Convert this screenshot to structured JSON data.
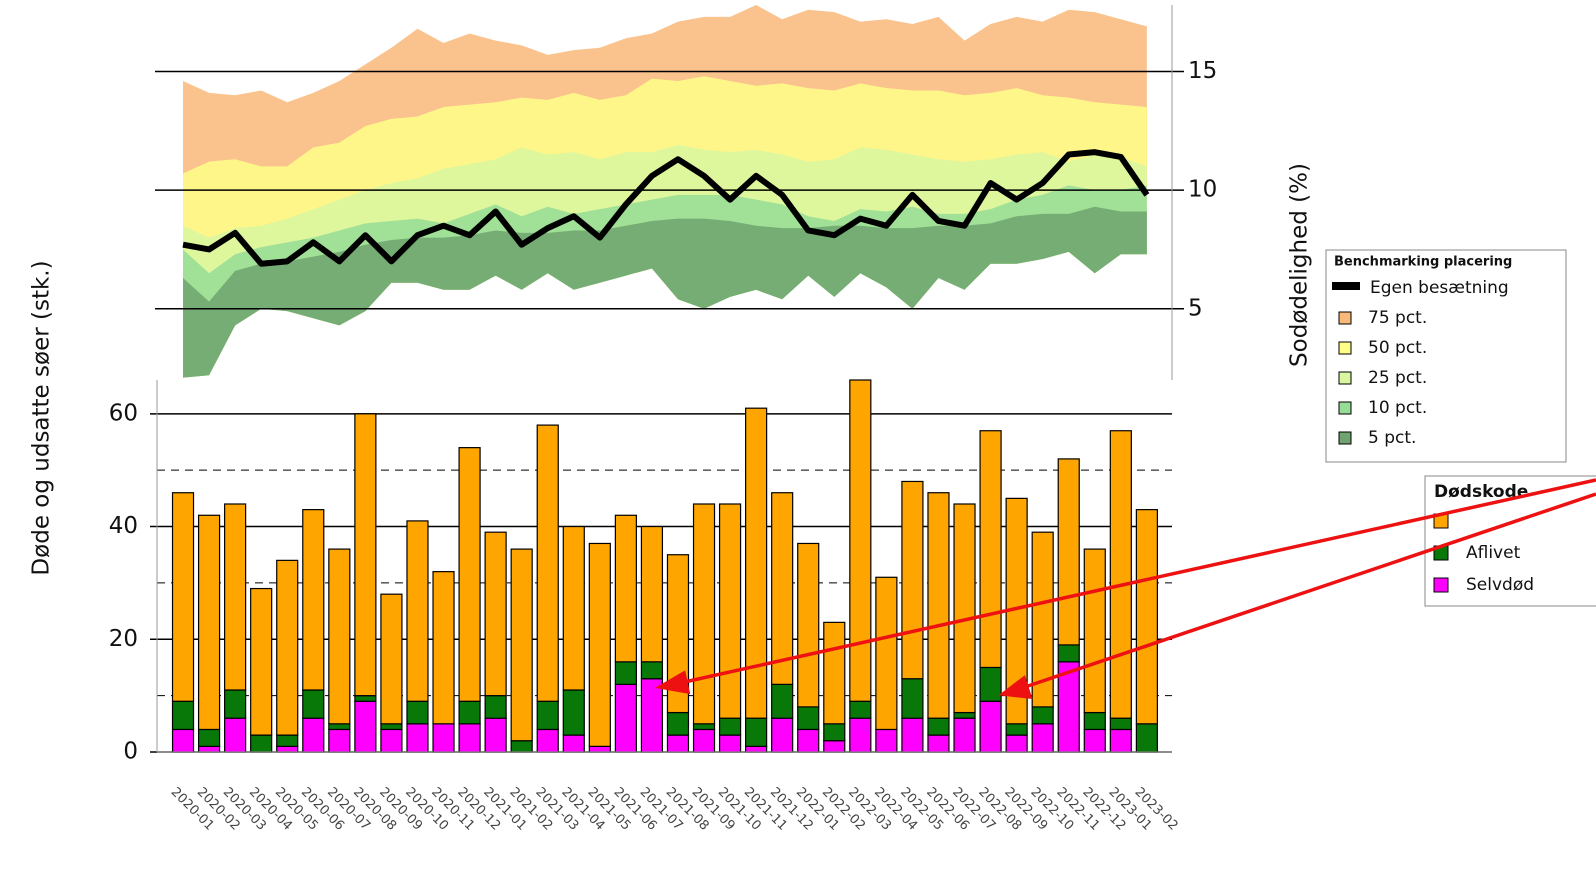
{
  "chart_data": [
    {
      "type": "area",
      "ylabel": "Sodødelighed (%)",
      "ylim": [
        2,
        17.8
      ],
      "yticks": [
        5,
        10,
        15
      ],
      "grid": true,
      "legend_title": "Benchmarking placering",
      "line": {
        "name": "Egen besætning",
        "color": "#000000",
        "values": [
          7.7,
          7.5,
          8.2,
          6.9,
          7.0,
          7.8,
          7.0,
          8.1,
          7.0,
          8.1,
          8.5,
          8.1,
          9.1,
          7.7,
          8.4,
          8.9,
          8.0,
          9.4,
          10.6,
          11.3,
          10.6,
          9.6,
          10.6,
          9.8,
          8.3,
          8.1,
          8.8,
          8.5,
          9.8,
          8.7,
          8.5,
          10.3,
          9.6,
          10.3,
          11.5,
          11.6,
          11.4,
          9.8
        ]
      },
      "series": [
        {
          "name": "75 pct.",
          "color": "#f9b97a",
          "values": [
            14.6,
            14.1,
            14.0,
            14.2,
            13.7,
            14.1,
            14.6,
            15.3,
            16.0,
            16.8,
            16.2,
            16.6,
            16.3,
            16.1,
            15.7,
            15.9,
            16.0,
            16.4,
            16.6,
            17.1,
            17.3,
            17.3,
            17.8,
            17.2,
            17.6,
            17.5,
            17.1,
            17.2,
            17.0,
            17.3,
            16.3,
            17.0,
            17.3,
            17.1,
            17.6,
            17.5,
            17.2,
            16.9
          ]
        },
        {
          "name": "50 pct.",
          "color": "#ffff88",
          "values": [
            10.7,
            11.2,
            11.3,
            11.0,
            11.0,
            11.8,
            12.0,
            12.7,
            13.0,
            13.1,
            13.5,
            13.6,
            13.7,
            13.9,
            13.8,
            14.1,
            13.8,
            14.0,
            14.7,
            14.6,
            14.8,
            14.6,
            14.4,
            14.5,
            14.3,
            14.2,
            14.5,
            14.3,
            14.2,
            14.2,
            14.0,
            14.1,
            14.3,
            14.0,
            13.9,
            13.7,
            13.6,
            13.5
          ]
        },
        {
          "name": "25 pct.",
          "color": "#d9f7a0",
          "values": [
            8.5,
            8.0,
            8.4,
            8.5,
            8.8,
            9.2,
            9.6,
            10.0,
            10.3,
            10.5,
            10.9,
            11.1,
            11.3,
            11.8,
            11.5,
            11.6,
            11.3,
            11.6,
            11.6,
            11.9,
            11.7,
            11.6,
            11.7,
            11.5,
            11.2,
            11.3,
            11.8,
            11.7,
            11.5,
            11.3,
            11.2,
            11.3,
            11.5,
            11.6,
            11.2,
            11.5,
            11.4,
            11.0
          ]
        },
        {
          "name": "10 pct.",
          "color": "#97dc97",
          "values": [
            7.5,
            6.5,
            7.3,
            7.6,
            7.8,
            8.0,
            8.3,
            8.6,
            8.7,
            8.8,
            8.6,
            9.0,
            9.4,
            8.9,
            9.3,
            9.0,
            9.2,
            9.4,
            9.6,
            9.8,
            9.8,
            9.8,
            9.6,
            9.4,
            8.9,
            8.7,
            9.2,
            9.1,
            9.3,
            9.0,
            9.0,
            9.2,
            9.6,
            9.8,
            10.2,
            10.0,
            10.0,
            10.2
          ]
        },
        {
          "name": "5 pct.",
          "color": "#6fa36f",
          "values": [
            6.3,
            5.3,
            6.6,
            6.9,
            7.0,
            7.2,
            7.4,
            7.7,
            7.9,
            8.0,
            8.0,
            8.1,
            8.3,
            8.2,
            8.2,
            8.3,
            8.3,
            8.5,
            8.7,
            8.8,
            8.8,
            8.7,
            8.5,
            8.4,
            8.4,
            8.5,
            8.5,
            8.4,
            8.4,
            8.5,
            8.5,
            8.6,
            8.9,
            9.0,
            9.0,
            9.3,
            9.1,
            9.1
          ]
        }
      ],
      "band_floor": [
        2.1,
        2.2,
        4.3,
        5.0,
        4.9,
        4.6,
        4.3,
        4.9,
        6.1,
        6.1,
        5.8,
        5.8,
        6.4,
        5.8,
        6.5,
        5.8,
        6.1,
        6.4,
        6.7,
        5.4,
        5.0,
        5.5,
        5.8,
        5.4,
        6.4,
        5.5,
        6.5,
        5.9,
        5.0,
        6.3,
        5.8,
        6.9,
        6.9,
        7.1,
        7.4,
        6.5,
        7.3,
        7.3
      ]
    },
    {
      "type": "bar",
      "ylabel": "Døde og udsatte søer (stk.)",
      "ylim": [
        0,
        66
      ],
      "yticks": [
        0,
        20,
        40,
        60
      ],
      "minor_yticks": [
        10,
        30,
        50
      ],
      "grid": true,
      "legend_title": "Dødskode",
      "categories": [
        "2020-01",
        "2020-02",
        "2020-03",
        "2020-04",
        "2020-05",
        "2020-06",
        "2020-07",
        "2020-08",
        "2020-09",
        "2020-10",
        "2020-11",
        "2020-12",
        "2021-01",
        "2021-02",
        "2021-03",
        "2021-04",
        "2021-05",
        "2021-06",
        "2021-07",
        "2021-08",
        "2021-09",
        "2021-10",
        "2021-11",
        "2021-12",
        "2022-01",
        "2022-02",
        "2022-03",
        "2022-04",
        "2022-05",
        "2022-06",
        "2022-07",
        "2022-08",
        "2022-09",
        "2022-10",
        "2022-11",
        "2022-12",
        "2023-01",
        "2023-02"
      ],
      "series": [
        {
          "name": null,
          "color": "#ffa500",
          "values": [
            37,
            38,
            33,
            26,
            31,
            32,
            31,
            50,
            23,
            32,
            27,
            45,
            29,
            34,
            49,
            29,
            36,
            26,
            24,
            28,
            39,
            38,
            55,
            34,
            29,
            18,
            57,
            27,
            35,
            40,
            37,
            42,
            40,
            31,
            33,
            29,
            51,
            38
          ]
        },
        {
          "name": "Aflivet",
          "color": "#087808",
          "values": [
            5,
            3,
            5,
            3,
            2,
            5,
            1,
            1,
            1,
            4,
            0,
            4,
            4,
            2,
            5,
            8,
            0,
            4,
            3,
            4,
            1,
            3,
            5,
            6,
            4,
            3,
            3,
            0,
            7,
            3,
            1,
            6,
            2,
            3,
            3,
            3,
            2,
            5
          ]
        },
        {
          "name": "Selvdød",
          "color": "#ff00ff",
          "values": [
            4,
            1,
            6,
            0,
            1,
            6,
            4,
            9,
            4,
            5,
            5,
            5,
            6,
            0,
            4,
            3,
            1,
            12,
            13,
            3,
            4,
            3,
            1,
            6,
            4,
            2,
            6,
            4,
            6,
            3,
            6,
            9,
            3,
            5,
            16,
            4,
            4,
            0
          ]
        }
      ]
    }
  ]
}
